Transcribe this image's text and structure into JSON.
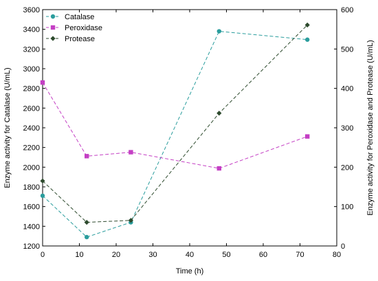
{
  "chart_data": {
    "type": "line",
    "xlabel": "Time (h)",
    "ylabel_left": "Enzyme activity for Catalase (U/mL)",
    "ylabel_right": "Enzyme activity for Peroxidase and Protease (U/mL)",
    "xlim": [
      0,
      80
    ],
    "ylim_left": [
      1200,
      3600
    ],
    "ylim_right": [
      0,
      600
    ],
    "x_ticks": [
      0,
      10,
      20,
      30,
      40,
      50,
      60,
      70,
      80
    ],
    "y_ticks_left": [
      1200,
      1400,
      1600,
      1800,
      2000,
      2200,
      2400,
      2600,
      2800,
      3000,
      3200,
      3400,
      3600
    ],
    "y_ticks_right": [
      0,
      100,
      200,
      300,
      400,
      500,
      600
    ],
    "grid": false,
    "legend_position": "top-left",
    "series": [
      {
        "name": "Catalase",
        "axis": "left",
        "color": "#2a9d9d",
        "marker": "circle",
        "x": [
          0,
          12,
          24,
          48,
          72
        ],
        "y": [
          1710,
          1290,
          1440,
          3380,
          3295
        ]
      },
      {
        "name": "Peroxidase",
        "axis": "right",
        "color": "#c43fc4",
        "marker": "square",
        "x": [
          0,
          12,
          24,
          48,
          72
        ],
        "y": [
          415,
          228,
          238,
          197,
          278
        ]
      },
      {
        "name": "Protease",
        "axis": "right",
        "color": "#2d4a2d",
        "marker": "diamond",
        "x": [
          0,
          12,
          24,
          48,
          72
        ],
        "y": [
          165,
          60,
          65,
          337,
          561
        ]
      }
    ]
  }
}
